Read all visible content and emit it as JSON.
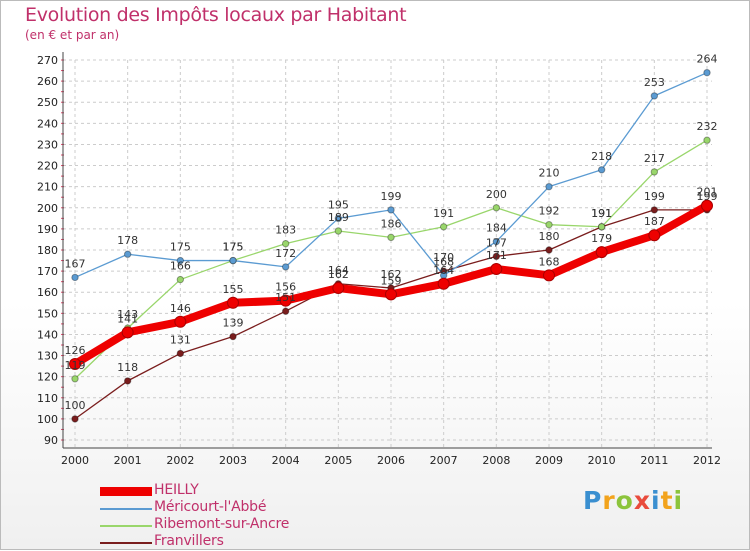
{
  "chart_data": {
    "type": "line",
    "title": "Evolution des Impôts locaux par Habitant",
    "subtitle": "(en € et par an)",
    "xlabel": "",
    "ylabel": "",
    "ylim": [
      90,
      270
    ],
    "y_ticks": [
      90,
      100,
      110,
      120,
      130,
      140,
      150,
      160,
      170,
      180,
      190,
      200,
      210,
      220,
      230,
      240,
      250,
      260,
      270
    ],
    "grid": true,
    "legend_position": "bottom-left",
    "x": [
      "2000",
      "2001",
      "2002",
      "2003",
      "2004",
      "2005",
      "2006",
      "2007",
      "2008",
      "2009",
      "2010",
      "2011",
      "2012"
    ],
    "series": [
      {
        "name": "Franvillers",
        "color": "#7a1d1d",
        "values": [
          100,
          118,
          131,
          139,
          151,
          164,
          162,
          170,
          177,
          180,
          191,
          199,
          199
        ],
        "labels": [
          "100",
          "118",
          "131",
          "139",
          "151",
          "164",
          "162",
          "170",
          "177",
          "180",
          "191",
          "199",
          "199"
        ]
      },
      {
        "name": "Ribemont-sur-Ancre",
        "color": "#99d66b",
        "values": [
          119,
          143,
          166,
          175,
          183,
          189,
          186,
          191,
          200,
          192,
          191,
          217,
          232
        ],
        "labels": [
          "119",
          "143",
          "166",
          "175",
          "183",
          "189",
          "186",
          "191",
          "200",
          "192",
          "191",
          "217",
          "232"
        ]
      },
      {
        "name": "Méricourt-l'Abbé",
        "color": "#5b9bd2",
        "values": [
          167,
          178,
          175,
          175,
          172,
          195,
          199,
          168,
          184,
          210,
          218,
          253,
          264
        ],
        "labels": [
          "167",
          "178",
          "175",
          "175",
          "172",
          "195",
          "199",
          "168",
          "184",
          "210",
          "218",
          "253",
          "264"
        ]
      },
      {
        "name": "HEILLY",
        "color": "#ee0000",
        "values": [
          126,
          141,
          146,
          155,
          156,
          162,
          159,
          164,
          171,
          168,
          179,
          187,
          201
        ],
        "labels": [
          "126",
          "141",
          "146",
          "155",
          "156",
          "162",
          "159",
          "164",
          "171",
          "168",
          "179",
          "187",
          "201"
        ]
      }
    ]
  },
  "legend": {
    "items": [
      {
        "name": "HEILLY",
        "color": "#ee0000"
      },
      {
        "name": "Méricourt-l'Abbé",
        "color": "#5b9bd2"
      },
      {
        "name": "Ribemont-sur-Ancre",
        "color": "#99d66b"
      },
      {
        "name": "Franvillers",
        "color": "#7a1d1d"
      }
    ]
  },
  "logo": {
    "letters": [
      "P",
      "r",
      "o",
      "x",
      "i",
      "t",
      "i"
    ],
    "colors": [
      "#3a8fd0",
      "#f2a31c",
      "#8cc43c",
      "#e94b3c",
      "#3a8fd0",
      "#f2a31c",
      "#8cc43c"
    ]
  }
}
